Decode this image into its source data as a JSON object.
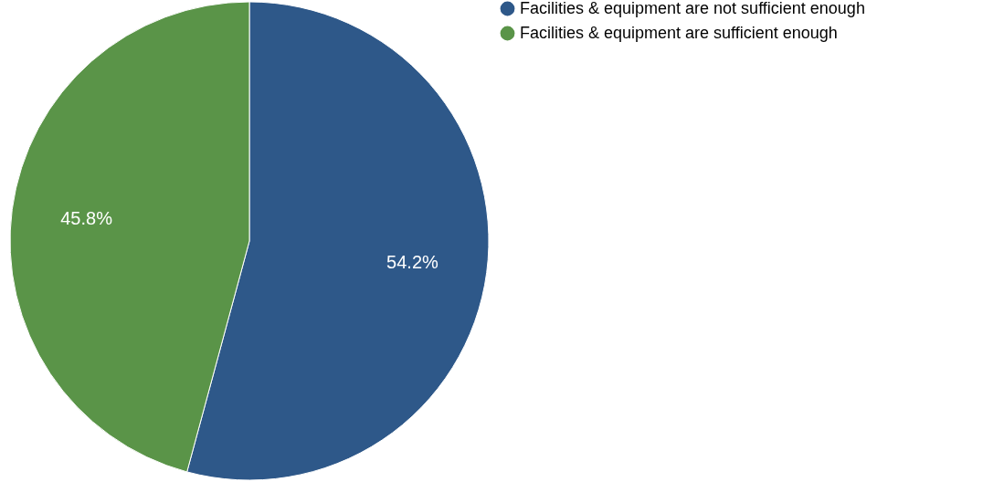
{
  "chart_data": {
    "type": "pie",
    "categories": [
      "Facilities & equipment are not sufficient enough",
      "Facilities & equipment are sufficient enough"
    ],
    "values": [
      54.2,
      45.8
    ],
    "colors": [
      "#2e5889",
      "#5a9448"
    ],
    "value_labels": [
      "54.2%",
      "45.8%"
    ],
    "legend": "top right"
  }
}
